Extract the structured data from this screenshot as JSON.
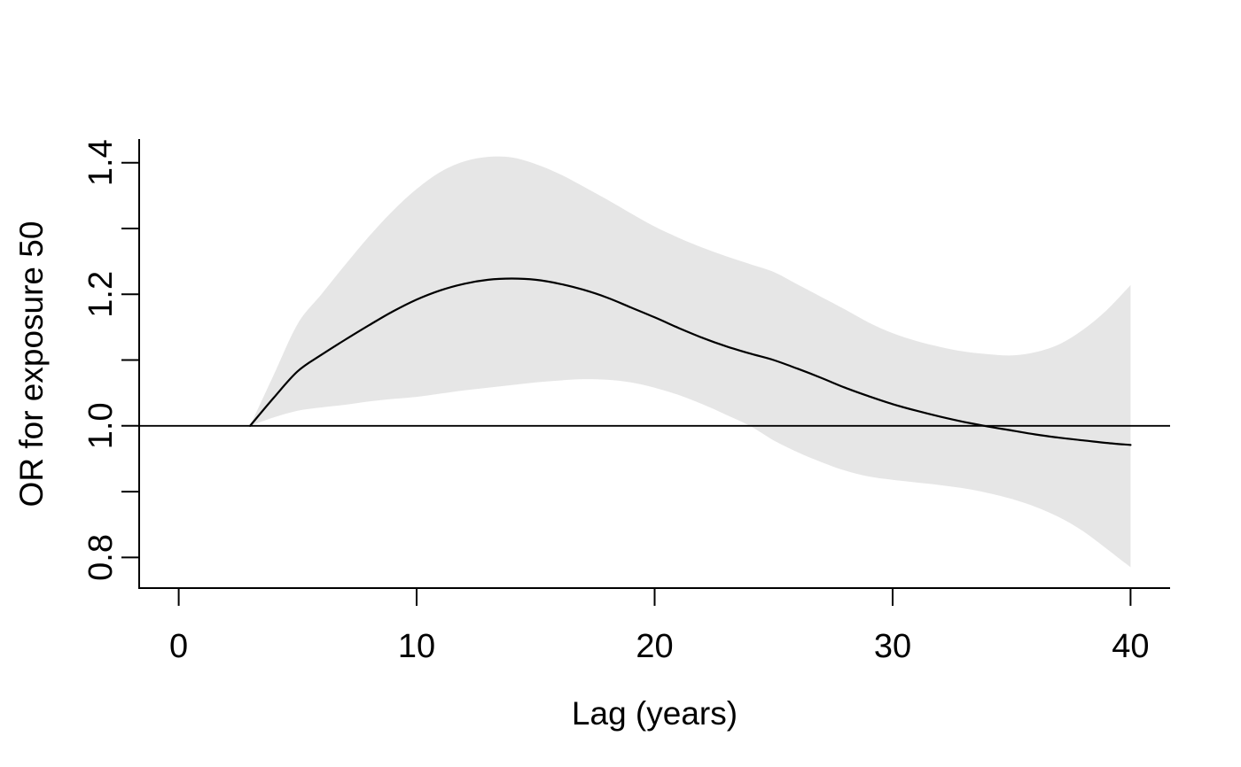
{
  "figure": {
    "background": "#ffffff"
  },
  "chart_data": {
    "type": "line",
    "title": "",
    "xlabel": "Lag (years)",
    "ylabel": "OR for exposure 50",
    "grid": false,
    "legend": false,
    "xlim": [
      -1.66,
      41.66
    ],
    "ylim": [
      0.752,
      1.436
    ],
    "x_axis": {
      "ticks": [
        {
          "value": 0,
          "label": "0"
        },
        {
          "value": 10,
          "label": "10"
        },
        {
          "value": 20,
          "label": "20"
        },
        {
          "value": 30,
          "label": "30"
        },
        {
          "value": 40,
          "label": "40"
        }
      ]
    },
    "y_axis": {
      "ticks": [
        {
          "value": 0.8,
          "label": "0.8"
        },
        {
          "value": 0.9,
          "label": ""
        },
        {
          "value": 1.0,
          "label": "1.0"
        },
        {
          "value": 1.1,
          "label": ""
        },
        {
          "value": 1.2,
          "label": "1.2"
        },
        {
          "value": 1.3,
          "label": ""
        },
        {
          "value": 1.4,
          "label": "1.4"
        }
      ]
    },
    "reference_line": {
      "y": 1.0
    },
    "colors": {
      "band": "#e6e6e6",
      "curve": "#000000",
      "reference": "#000000",
      "axis": "#000000"
    },
    "x": [
      3,
      4,
      5,
      6,
      7,
      8,
      9,
      10,
      11,
      12,
      13,
      14,
      15,
      16,
      17,
      18,
      19,
      20,
      21,
      22,
      23,
      24,
      25,
      26,
      27,
      28,
      29,
      30,
      31,
      32,
      33,
      34,
      35,
      36,
      37,
      38,
      39,
      40
    ],
    "series": [
      {
        "name": "OR estimate",
        "values": [
          1.0,
          1.043,
          1.083,
          1.108,
          1.131,
          1.153,
          1.174,
          1.192,
          1.206,
          1.216,
          1.222,
          1.224,
          1.222,
          1.216,
          1.207,
          1.195,
          1.18,
          1.165,
          1.149,
          1.134,
          1.121,
          1.11,
          1.1,
          1.087,
          1.073,
          1.058,
          1.045,
          1.033,
          1.023,
          1.014,
          1.006,
          0.999,
          0.993,
          0.987,
          0.982,
          0.978,
          0.974,
          0.971
        ]
      },
      {
        "name": "CI lower",
        "values": [
          1.0,
          1.013,
          1.023,
          1.028,
          1.032,
          1.037,
          1.041,
          1.044,
          1.049,
          1.054,
          1.058,
          1.062,
          1.066,
          1.069,
          1.071,
          1.07,
          1.066,
          1.058,
          1.047,
          1.033,
          1.017,
          1.0,
          0.978,
          0.96,
          0.945,
          0.932,
          0.923,
          0.918,
          0.914,
          0.91,
          0.905,
          0.898,
          0.889,
          0.877,
          0.861,
          0.84,
          0.813,
          0.785
        ]
      },
      {
        "name": "CI upper",
        "values": [
          1.0,
          1.078,
          1.155,
          1.2,
          1.245,
          1.288,
          1.327,
          1.36,
          1.386,
          1.402,
          1.409,
          1.408,
          1.398,
          1.383,
          1.364,
          1.344,
          1.323,
          1.303,
          1.286,
          1.271,
          1.258,
          1.246,
          1.234,
          1.215,
          1.196,
          1.177,
          1.157,
          1.141,
          1.129,
          1.12,
          1.113,
          1.109,
          1.107,
          1.112,
          1.124,
          1.146,
          1.176,
          1.214
        ]
      }
    ]
  }
}
